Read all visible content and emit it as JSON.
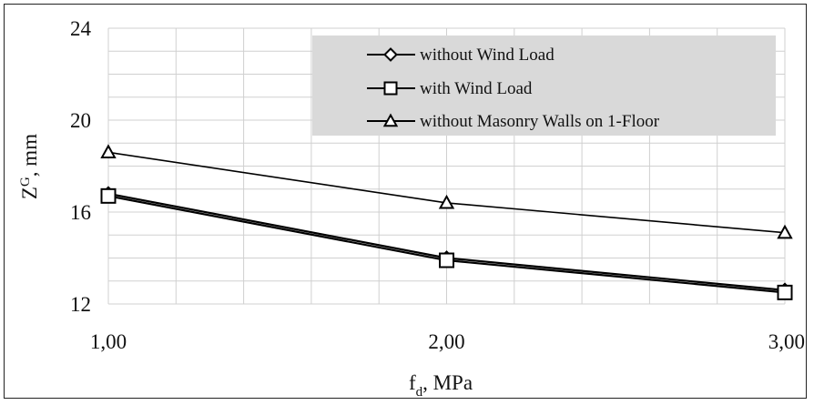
{
  "chart_data": {
    "type": "line",
    "title": "",
    "xlabel": {
      "main": "f",
      "sub": "d",
      "rest": ", MPa"
    },
    "ylabel": {
      "main": "Z",
      "sup": "G",
      "rest": ", mm"
    },
    "x": [
      1,
      2,
      3
    ],
    "x_tick_labels": [
      "1,00",
      "2,00",
      "3,00"
    ],
    "xlim": [
      1,
      3
    ],
    "ylim": [
      12,
      24
    ],
    "y_ticks": [
      12,
      16,
      20,
      24
    ],
    "grid": true,
    "legend_position": "top-right",
    "series": [
      {
        "name": "without Wind Load",
        "marker": "diamond",
        "values": [
          16.8,
          14.0,
          12.6
        ]
      },
      {
        "name": "with Wind Load",
        "marker": "square",
        "values": [
          16.7,
          13.9,
          12.5
        ]
      },
      {
        "name": "without Masonry Walls on 1-Floor",
        "marker": "triangle",
        "values": [
          18.6,
          16.4,
          15.1
        ]
      }
    ],
    "colors": {
      "line": "#000000",
      "grid": "#d0d0d0",
      "legend_bg": "#d9d9d9"
    }
  }
}
